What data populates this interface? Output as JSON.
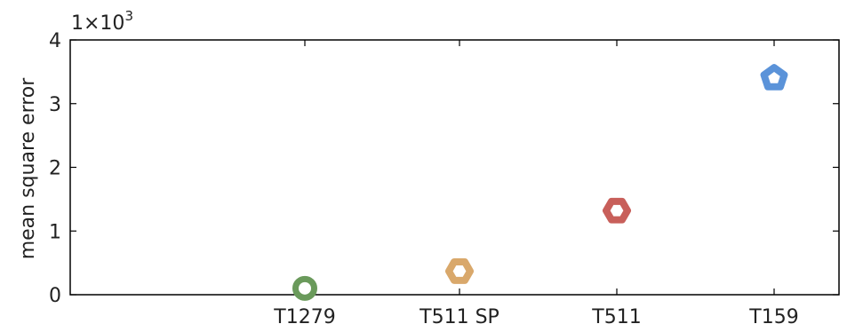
{
  "chart_data": {
    "type": "scatter",
    "title": "",
    "xlabel": "",
    "ylabel": "mean square error",
    "y_multiplier": {
      "base": "1×10",
      "exponent": "3"
    },
    "ylim": [
      0,
      4
    ],
    "yticks": [
      "0",
      "1",
      "2",
      "3",
      "4"
    ],
    "grid": false,
    "categories": [
      "T1279",
      "T511 SP",
      "T511",
      "T159"
    ],
    "points": [
      {
        "category": "T1279",
        "value": 0.1,
        "marker": "circle",
        "color": "#6a9a5b"
      },
      {
        "category": "T511 SP",
        "value": 0.37,
        "marker": "hexagon",
        "color": "#d9a86b"
      },
      {
        "category": "T511",
        "value": 1.32,
        "marker": "hexagon",
        "color": "#c85f5a"
      },
      {
        "category": "T159",
        "value": 3.4,
        "marker": "pentagon",
        "color": "#5b93d9"
      }
    ]
  }
}
